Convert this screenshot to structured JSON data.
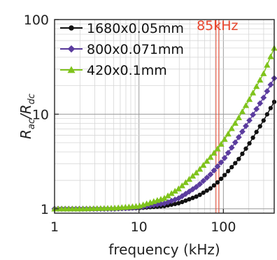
{
  "chart_data": {
    "type": "scatter",
    "xscale": "log",
    "yscale": "log",
    "xlim": [
      1,
      400
    ],
    "ylim": [
      0.9,
      100
    ],
    "xlabel": "frequency (kHz)",
    "ylabel_main": "R",
    "ylabel_num_sub": "ac",
    "ylabel_sep": "/R",
    "ylabel_den_sub": "dc",
    "xticks": [
      {
        "value": 1,
        "label": "1"
      },
      {
        "value": 10,
        "label": "10"
      },
      {
        "value": 100,
        "label": "100"
      }
    ],
    "yticks": [
      {
        "value": 1,
        "label": "1"
      },
      {
        "value": 10,
        "label": "10"
      },
      {
        "value": 100,
        "label": "100"
      }
    ],
    "grid": true,
    "legend_position": "top-left",
    "series": [
      {
        "name": "1680x0.05mm",
        "color": "#111111",
        "marker": "circle",
        "x": [
          1,
          2,
          5,
          10,
          20,
          30,
          50,
          70,
          85,
          100,
          150,
          200,
          300,
          400
        ],
        "y": [
          1.0,
          1.0,
          1.0,
          1.02,
          1.07,
          1.15,
          1.37,
          1.64,
          1.9,
          2.2,
          3.3,
          4.8,
          8.6,
          13.5
        ]
      },
      {
        "name": "800x0.071mm",
        "color": "#5b3c9e",
        "marker": "diamond",
        "x": [
          1,
          2,
          5,
          10,
          20,
          30,
          50,
          70,
          85,
          100,
          150,
          200,
          300,
          400
        ],
        "y": [
          1.0,
          1.0,
          1.0,
          1.04,
          1.14,
          1.3,
          1.75,
          2.3,
          2.8,
          3.3,
          5.6,
          8.4,
          15.0,
          24.0
        ]
      },
      {
        "name": "420x0.1mm",
        "color": "#7fc31c",
        "marker": "triangle",
        "x": [
          1,
          2,
          5,
          10,
          20,
          30,
          50,
          70,
          85,
          100,
          150,
          200,
          300,
          400
        ],
        "y": [
          1.0,
          1.0,
          1.02,
          1.07,
          1.3,
          1.65,
          2.5,
          3.5,
          4.3,
          5.2,
          9.0,
          14.0,
          27.0,
          50.0
        ]
      }
    ],
    "annotations": [
      {
        "label": "85kHz",
        "x": 85,
        "color": "#e8462d"
      }
    ]
  }
}
